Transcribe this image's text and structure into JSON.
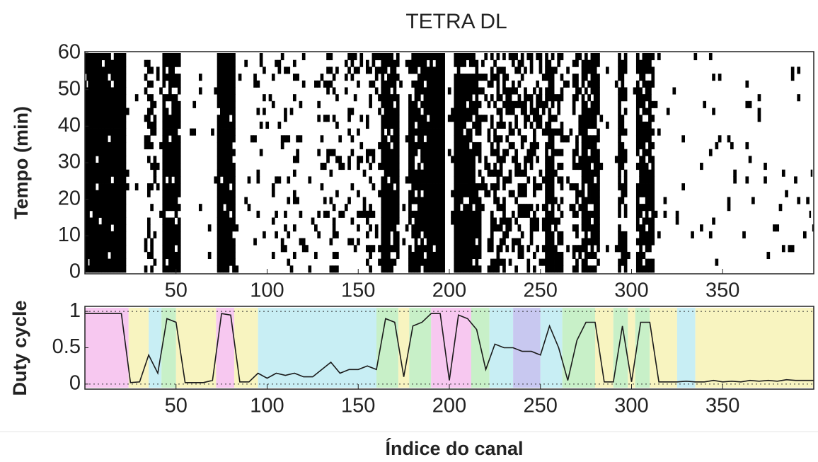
{
  "chart_data": [
    {
      "type": "raster",
      "title": "TETRA DL",
      "y_label": "Tempo (min)",
      "xlim": [
        0,
        400
      ],
      "ylim": [
        0,
        60
      ],
      "xticks": [
        50,
        100,
        150,
        200,
        250,
        300,
        350
      ],
      "yticks": [
        0,
        10,
        20,
        30,
        40,
        50,
        60
      ],
      "color": "#000000"
    },
    {
      "type": "line",
      "x_label": "Índice do canal",
      "y_label": "Duty cycle",
      "xlim": [
        0,
        400
      ],
      "ylim": [
        -0.05,
        1.05
      ],
      "xticks": [
        50,
        100,
        150,
        200,
        250,
        300,
        350
      ],
      "yticks": [
        0,
        0.5,
        1
      ],
      "dotted_lines": [
        0,
        1
      ],
      "x": [
        0,
        5,
        10,
        15,
        20,
        25,
        30,
        35,
        40,
        45,
        50,
        55,
        60,
        65,
        70,
        75,
        80,
        85,
        90,
        95,
        100,
        105,
        110,
        115,
        120,
        125,
        130,
        135,
        140,
        145,
        150,
        155,
        160,
        165,
        170,
        175,
        180,
        185,
        190,
        195,
        200,
        205,
        210,
        215,
        220,
        225,
        230,
        235,
        240,
        245,
        250,
        255,
        260,
        265,
        270,
        275,
        280,
        285,
        290,
        295,
        300,
        305,
        310,
        315,
        320,
        325,
        330,
        335,
        340,
        345,
        350,
        355,
        360,
        365,
        370,
        375,
        380,
        385,
        390,
        395,
        400
      ],
      "series": [
        {
          "color": "#1a1a1a",
          "values": [
            0.97,
            0.97,
            0.97,
            0.97,
            0.97,
            0.02,
            0.03,
            0.4,
            0.15,
            0.9,
            0.85,
            0.02,
            0.02,
            0.02,
            0.05,
            0.97,
            0.95,
            0.03,
            0.03,
            0.15,
            0.08,
            0.15,
            0.12,
            0.15,
            0.1,
            0.1,
            0.2,
            0.3,
            0.15,
            0.2,
            0.2,
            0.25,
            0.2,
            0.9,
            0.85,
            0.1,
            0.8,
            0.85,
            0.97,
            0.97,
            0.05,
            0.95,
            0.9,
            0.75,
            0.2,
            0.55,
            0.5,
            0.5,
            0.45,
            0.45,
            0.4,
            0.8,
            0.5,
            0.05,
            0.6,
            0.85,
            0.85,
            0.03,
            0.03,
            0.8,
            0.03,
            0.85,
            0.85,
            0.03,
            0.03,
            0.03,
            0.04,
            0.03,
            0.03,
            0.05,
            0.03,
            0.04,
            0.03,
            0.05,
            0.04,
            0.05,
            0.04,
            0.06,
            0.05,
            0.05,
            0.05
          ]
        }
      ],
      "regions": [
        {
          "x": [
            0,
            24
          ],
          "color": "#f7c8f0"
        },
        {
          "x": [
            24,
            35
          ],
          "color": "#f8f4c0"
        },
        {
          "x": [
            35,
            42
          ],
          "color": "#c8eef4"
        },
        {
          "x": [
            42,
            50
          ],
          "color": "#c8f0c8"
        },
        {
          "x": [
            50,
            72
          ],
          "color": "#f8f4c0"
        },
        {
          "x": [
            72,
            82
          ],
          "color": "#f7c8f0"
        },
        {
          "x": [
            82,
            95
          ],
          "color": "#f8f4c0"
        },
        {
          "x": [
            95,
            160
          ],
          "color": "#c8eef4"
        },
        {
          "x": [
            160,
            172
          ],
          "color": "#c8f0c8"
        },
        {
          "x": [
            172,
            178
          ],
          "color": "#f8f4c0"
        },
        {
          "x": [
            178,
            190
          ],
          "color": "#c8f0c8"
        },
        {
          "x": [
            190,
            212
          ],
          "color": "#f7c8f0"
        },
        {
          "x": [
            212,
            222
          ],
          "color": "#c8f0c8"
        },
        {
          "x": [
            222,
            235
          ],
          "color": "#c8eef4"
        },
        {
          "x": [
            235,
            250
          ],
          "color": "#c8c8f0"
        },
        {
          "x": [
            250,
            262
          ],
          "color": "#c8eef4"
        },
        {
          "x": [
            262,
            280
          ],
          "color": "#c8f0c8"
        },
        {
          "x": [
            280,
            290
          ],
          "color": "#f8f4c0"
        },
        {
          "x": [
            290,
            298
          ],
          "color": "#c8f0c8"
        },
        {
          "x": [
            298,
            302
          ],
          "color": "#f8f4c0"
        },
        {
          "x": [
            302,
            310
          ],
          "color": "#c8f0c8"
        },
        {
          "x": [
            310,
            325
          ],
          "color": "#f8f4c0"
        },
        {
          "x": [
            325,
            335
          ],
          "color": "#c8eef4"
        },
        {
          "x": [
            335,
            400
          ],
          "color": "#f8f4c0"
        }
      ]
    }
  ]
}
